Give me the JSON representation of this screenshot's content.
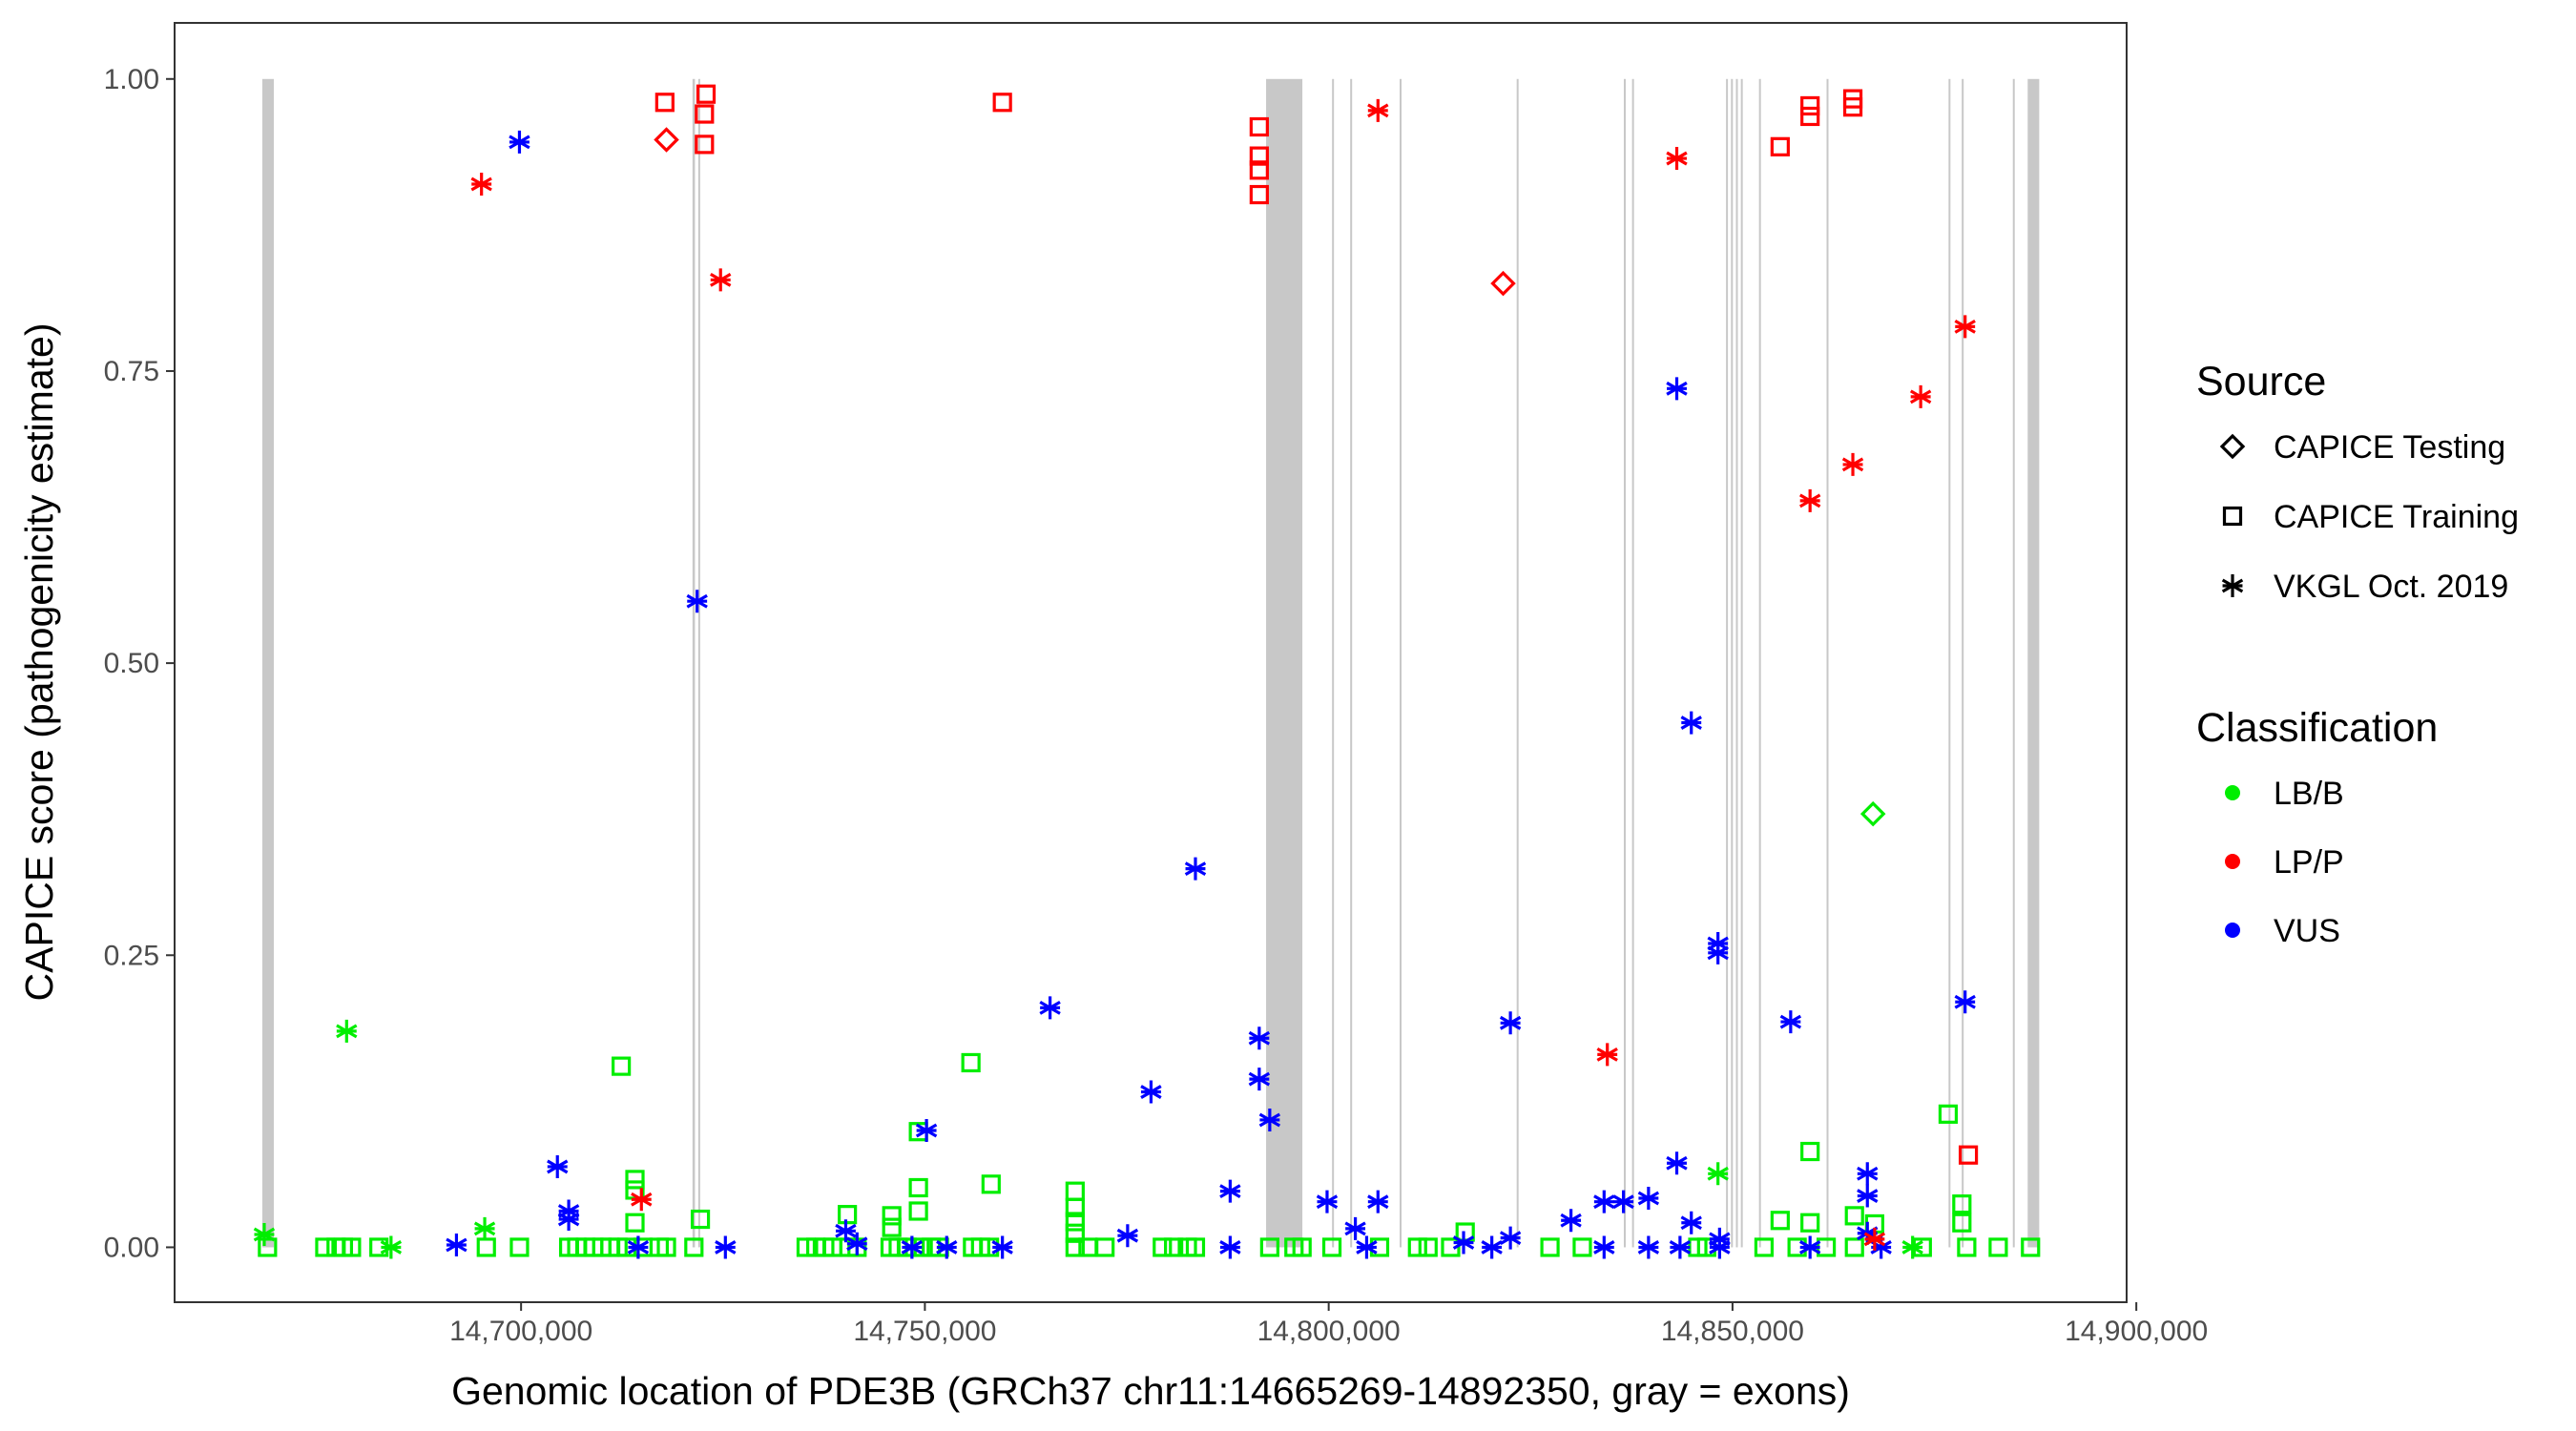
{
  "chart_data": {
    "type": "scatter",
    "xlabel": "Genomic location of PDE3B (GRCh37 chr11:14665269-14892350, gray = exons)",
    "ylabel": "CAPICE score (pathogenicity estimate)",
    "xlim": [
      14657100,
      14898800
    ],
    "ylim": [
      -0.047,
      1.048
    ],
    "x_ticks": [
      14700000,
      14750000,
      14800000,
      14850000,
      14900000
    ],
    "x_tick_labels": [
      "14,700,000",
      "14,750,000",
      "14,800,000",
      "14,850,000",
      "14,900,000"
    ],
    "y_ticks": [
      0,
      0.25,
      0.5,
      0.75,
      1.0
    ],
    "y_tick_labels": [
      "0.00",
      "0.25",
      "0.50",
      "0.75",
      "1.00"
    ],
    "grid": false,
    "legend_placement": "right",
    "legend": {
      "source_title": "Source",
      "sources": [
        {
          "key": "test",
          "label": "CAPICE Testing",
          "shape": "diamond"
        },
        {
          "key": "train",
          "label": "CAPICE Training",
          "shape": "square"
        },
        {
          "key": "vkgl",
          "label": "VKGL Oct. 2019",
          "shape": "asterisk"
        }
      ],
      "class_title": "Classification",
      "classes": [
        {
          "key": "LB/B",
          "label": "LB/B",
          "color": "#00ee00"
        },
        {
          "key": "LP/P",
          "label": "LP/P",
          "color": "#ff0000"
        },
        {
          "key": "VUS",
          "label": "VUS",
          "color": "#0000ff"
        }
      ]
    },
    "exon_color": "#c8c8c8",
    "exons": [
      [
        14667956,
        14669385
      ],
      [
        14721226,
        14721533
      ],
      [
        14721941,
        14722145
      ],
      [
        14792250,
        14796740
      ],
      [
        14800417,
        14800500
      ],
      [
        14802662,
        14802745
      ],
      [
        14808785,
        14808868
      ],
      [
        14823276,
        14823359
      ],
      [
        14836543,
        14836626
      ],
      [
        14837563,
        14837646
      ],
      [
        14849197,
        14849280
      ],
      [
        14849810,
        14849893
      ],
      [
        14850422,
        14850505
      ],
      [
        14851034,
        14851117
      ],
      [
        14853279,
        14853362
      ],
      [
        14861647,
        14861730
      ],
      [
        14876751,
        14876834
      ],
      [
        14878384,
        14878467
      ],
      [
        14884711,
        14884794
      ],
      [
        14886548,
        14887977
      ]
    ],
    "point_fields": [
      "position",
      "score",
      "source",
      "classification"
    ],
    "points": [
      [
        14668600,
        0,
        "train",
        "LB/B"
      ],
      [
        14675700,
        0,
        "train",
        "LB/B"
      ],
      [
        14677100,
        0,
        "train",
        "LB/B"
      ],
      [
        14678000,
        0,
        "train",
        "LB/B"
      ],
      [
        14679000,
        0,
        "train",
        "LB/B"
      ],
      [
        14682400,
        0,
        "train",
        "LB/B"
      ],
      [
        14683900,
        0,
        "vkgl",
        "LB/B"
      ],
      [
        14695700,
        0,
        "train",
        "LB/B"
      ],
      [
        14699800,
        0,
        "train",
        "LB/B"
      ],
      [
        14705900,
        0,
        "train",
        "LB/B"
      ],
      [
        14706900,
        0,
        "train",
        "LB/B"
      ],
      [
        14708000,
        0,
        "train",
        "LB/B"
      ],
      [
        14709000,
        0,
        "train",
        "LB/B"
      ],
      [
        14710000,
        0,
        "train",
        "LB/B"
      ],
      [
        14711000,
        0,
        "train",
        "LB/B"
      ],
      [
        14712000,
        0,
        "train",
        "LB/B"
      ],
      [
        14713100,
        0,
        "train",
        "LB/B"
      ],
      [
        14715100,
        0,
        "train",
        "LB/B"
      ],
      [
        14717100,
        0,
        "train",
        "LB/B"
      ],
      [
        14718000,
        0,
        "train",
        "LB/B"
      ],
      [
        14721400,
        0,
        "train",
        "LB/B"
      ],
      [
        14735300,
        0,
        "train",
        "LB/B"
      ],
      [
        14736500,
        0,
        "train",
        "LB/B"
      ],
      [
        14737600,
        0,
        "train",
        "LB/B"
      ],
      [
        14738600,
        0,
        "train",
        "LB/B"
      ],
      [
        14740600,
        0,
        "train",
        "LB/B"
      ],
      [
        14741600,
        0,
        "train",
        "LB/B"
      ],
      [
        14745700,
        0,
        "train",
        "LB/B"
      ],
      [
        14746700,
        0,
        "train",
        "LB/B"
      ],
      [
        14747800,
        0,
        "train",
        "LB/B"
      ],
      [
        14749400,
        0,
        "train",
        "LB/B"
      ],
      [
        14750800,
        0,
        "train",
        "LB/B"
      ],
      [
        14751800,
        0,
        "train",
        "LB/B"
      ],
      [
        14755900,
        0,
        "train",
        "LB/B"
      ],
      [
        14756900,
        0,
        "train",
        "LB/B"
      ],
      [
        14758000,
        0,
        "train",
        "LB/B"
      ],
      [
        14768600,
        0,
        "train",
        "LB/B"
      ],
      [
        14770200,
        0,
        "train",
        "LB/B"
      ],
      [
        14772300,
        0,
        "train",
        "LB/B"
      ],
      [
        14779400,
        0,
        "train",
        "LB/B"
      ],
      [
        14780800,
        0,
        "train",
        "LB/B"
      ],
      [
        14782500,
        0,
        "train",
        "LB/B"
      ],
      [
        14783500,
        0,
        "train",
        "LB/B"
      ],
      [
        14792700,
        0,
        "train",
        "LB/B"
      ],
      [
        14795700,
        0,
        "train",
        "LB/B"
      ],
      [
        14796700,
        0,
        "train",
        "LB/B"
      ],
      [
        14800400,
        0,
        "train",
        "LB/B"
      ],
      [
        14806300,
        0,
        "train",
        "LB/B"
      ],
      [
        14811000,
        0,
        "train",
        "LB/B"
      ],
      [
        14812300,
        0,
        "train",
        "LB/B"
      ],
      [
        14815100,
        0,
        "train",
        "LB/B"
      ],
      [
        14827400,
        0,
        "train",
        "LB/B"
      ],
      [
        14831400,
        0,
        "train",
        "LB/B"
      ],
      [
        14845700,
        0,
        "train",
        "LB/B"
      ],
      [
        14846800,
        0,
        "train",
        "LB/B"
      ],
      [
        14853900,
        0,
        "train",
        "LB/B"
      ],
      [
        14858000,
        0,
        "train",
        "LB/B"
      ],
      [
        14861600,
        0,
        "train",
        "LB/B"
      ],
      [
        14865100,
        0,
        "train",
        "LB/B"
      ],
      [
        14872300,
        0,
        "vkgl",
        "LB/B"
      ],
      [
        14873500,
        0,
        "train",
        "LB/B"
      ],
      [
        14879000,
        0,
        "train",
        "LB/B"
      ],
      [
        14882900,
        0,
        "train",
        "LB/B"
      ],
      [
        14886900,
        0,
        "train",
        "LB/B"
      ],
      [
        14678400,
        0.185,
        "vkgl",
        "LB/B"
      ],
      [
        14867400,
        0.371,
        "test",
        "LB/B"
      ],
      [
        14848200,
        0.063,
        "vkgl",
        "LB/B"
      ],
      [
        14712400,
        0.155,
        "train",
        "LB/B"
      ],
      [
        14755700,
        0.158,
        "train",
        "LB/B"
      ],
      [
        14758200,
        0.054,
        "train",
        "LB/B"
      ],
      [
        14749200,
        0.051,
        "train",
        "LB/B"
      ],
      [
        14749200,
        0.031,
        "train",
        "LB/B"
      ],
      [
        14749200,
        0.099,
        "train",
        "LB/B"
      ],
      [
        14714100,
        0.058,
        "train",
        "LB/B"
      ],
      [
        14714100,
        0.049,
        "train",
        "LB/B"
      ],
      [
        14714100,
        0.021,
        "train",
        "LB/B"
      ],
      [
        14876700,
        0.114,
        "train",
        "LB/B"
      ],
      [
        14859600,
        0.082,
        "train",
        "LB/B"
      ],
      [
        14859600,
        0.021,
        "train",
        "LB/B"
      ],
      [
        14878400,
        0.037,
        "train",
        "LB/B"
      ],
      [
        14878400,
        0.021,
        "train",
        "LB/B"
      ],
      [
        14865100,
        0.027,
        "train",
        "LB/B"
      ],
      [
        14855900,
        0.023,
        "train",
        "LB/B"
      ],
      [
        14768600,
        0.048,
        "train",
        "LB/B"
      ],
      [
        14768600,
        0.034,
        "train",
        "LB/B"
      ],
      [
        14768600,
        0.022,
        "train",
        "LB/B"
      ],
      [
        14768600,
        0.012,
        "train",
        "LB/B"
      ],
      [
        14745900,
        0.027,
        "train",
        "LB/B"
      ],
      [
        14745900,
        0.017,
        "train",
        "LB/B"
      ],
      [
        14722200,
        0.024,
        "train",
        "LB/B"
      ],
      [
        14740400,
        0.028,
        "train",
        "LB/B"
      ],
      [
        14668200,
        0.011,
        "vkgl",
        "LB/B"
      ],
      [
        14695500,
        0.016,
        "vkgl",
        "LB/B"
      ],
      [
        14816900,
        0.013,
        "train",
        "LB/B"
      ],
      [
        14867600,
        0.02,
        "train",
        "LB/B"
      ],
      [
        14699800,
        0.946,
        "vkgl",
        "VUS"
      ],
      [
        14721800,
        0.553,
        "vkgl",
        "VUS"
      ],
      [
        14704500,
        0.069,
        "vkgl",
        "VUS"
      ],
      [
        14705900,
        0.031,
        "vkgl",
        "VUS"
      ],
      [
        14705900,
        0.024,
        "vkgl",
        "VUS"
      ],
      [
        14692000,
        0.002,
        "vkgl",
        "VUS"
      ],
      [
        14714500,
        0,
        "vkgl",
        "VUS"
      ],
      [
        14725300,
        0,
        "vkgl",
        "VUS"
      ],
      [
        14740200,
        0.014,
        "vkgl",
        "VUS"
      ],
      [
        14741600,
        0.003,
        "vkgl",
        "VUS"
      ],
      [
        14748400,
        0,
        "vkgl",
        "VUS"
      ],
      [
        14750200,
        0.1,
        "vkgl",
        "VUS"
      ],
      [
        14752700,
        0,
        "vkgl",
        "VUS"
      ],
      [
        14759600,
        0,
        "vkgl",
        "VUS"
      ],
      [
        14765500,
        0.205,
        "vkgl",
        "VUS"
      ],
      [
        14775100,
        0.01,
        "vkgl",
        "VUS"
      ],
      [
        14778000,
        0.133,
        "vkgl",
        "VUS"
      ],
      [
        14783500,
        0.324,
        "vkgl",
        "VUS"
      ],
      [
        14787800,
        0,
        "vkgl",
        "VUS"
      ],
      [
        14787800,
        0.048,
        "vkgl",
        "VUS"
      ],
      [
        14791400,
        0.179,
        "vkgl",
        "VUS"
      ],
      [
        14791400,
        0.144,
        "vkgl",
        "VUS"
      ],
      [
        14792700,
        0.109,
        "vkgl",
        "VUS"
      ],
      [
        14799800,
        0.039,
        "vkgl",
        "VUS"
      ],
      [
        14803300,
        0.016,
        "vkgl",
        "VUS"
      ],
      [
        14806100,
        0.039,
        "vkgl",
        "VUS"
      ],
      [
        14804700,
        0,
        "vkgl",
        "VUS"
      ],
      [
        14816700,
        0.004,
        "vkgl",
        "VUS"
      ],
      [
        14820200,
        0,
        "vkgl",
        "VUS"
      ],
      [
        14822500,
        0.192,
        "vkgl",
        "VUS"
      ],
      [
        14822500,
        0.008,
        "vkgl",
        "VUS"
      ],
      [
        14830000,
        0.023,
        "vkgl",
        "VUS"
      ],
      [
        14834100,
        0.039,
        "vkgl",
        "VUS"
      ],
      [
        14834100,
        0,
        "vkgl",
        "VUS"
      ],
      [
        14836500,
        0.039,
        "vkgl",
        "VUS"
      ],
      [
        14839600,
        0.042,
        "vkgl",
        "VUS"
      ],
      [
        14839600,
        0,
        "vkgl",
        "VUS"
      ],
      [
        14843100,
        0.735,
        "vkgl",
        "VUS"
      ],
      [
        14843100,
        0.072,
        "vkgl",
        "VUS"
      ],
      [
        14843500,
        0,
        "vkgl",
        "VUS"
      ],
      [
        14844900,
        0.449,
        "vkgl",
        "VUS"
      ],
      [
        14844900,
        0.021,
        "vkgl",
        "VUS"
      ],
      [
        14848200,
        0.26,
        "vkgl",
        "VUS"
      ],
      [
        14848200,
        0.252,
        "vkgl",
        "VUS"
      ],
      [
        14848400,
        0.007,
        "vkgl",
        "VUS"
      ],
      [
        14848400,
        0,
        "vkgl",
        "VUS"
      ],
      [
        14857200,
        0.193,
        "vkgl",
        "VUS"
      ],
      [
        14859600,
        0,
        "vkgl",
        "VUS"
      ],
      [
        14866700,
        0.063,
        "vkgl",
        "VUS"
      ],
      [
        14866700,
        0.044,
        "vkgl",
        "VUS"
      ],
      [
        14866700,
        0.012,
        "vkgl",
        "VUS"
      ],
      [
        14868400,
        0,
        "vkgl",
        "VUS"
      ],
      [
        14878800,
        0.21,
        "vkgl",
        "VUS"
      ],
      [
        14695100,
        0.91,
        "vkgl",
        "LP/P"
      ],
      [
        14718000,
        0.948,
        "test",
        "LP/P"
      ],
      [
        14717800,
        0.98,
        "train",
        "LP/P"
      ],
      [
        14722900,
        0.987,
        "train",
        "LP/P"
      ],
      [
        14722700,
        0.97,
        "train",
        "LP/P"
      ],
      [
        14722700,
        0.944,
        "train",
        "LP/P"
      ],
      [
        14724700,
        0.828,
        "vkgl",
        "LP/P"
      ],
      [
        14714900,
        0.041,
        "vkgl",
        "LP/P"
      ],
      [
        14759600,
        0.98,
        "train",
        "LP/P"
      ],
      [
        14791400,
        0.959,
        "train",
        "LP/P"
      ],
      [
        14791400,
        0.934,
        "train",
        "LP/P"
      ],
      [
        14791400,
        0.922,
        "train",
        "LP/P"
      ],
      [
        14791400,
        0.901,
        "train",
        "LP/P"
      ],
      [
        14806100,
        0.973,
        "vkgl",
        "LP/P"
      ],
      [
        14821600,
        0.825,
        "test",
        "LP/P"
      ],
      [
        14843100,
        0.932,
        "vkgl",
        "LP/P"
      ],
      [
        14834500,
        0.165,
        "vkgl",
        "LP/P"
      ],
      [
        14855900,
        0.942,
        "train",
        "LP/P"
      ],
      [
        14859600,
        0.977,
        "train",
        "LP/P"
      ],
      [
        14859600,
        0.968,
        "train",
        "LP/P"
      ],
      [
        14859600,
        0.639,
        "vkgl",
        "LP/P"
      ],
      [
        14864900,
        0.983,
        "train",
        "LP/P"
      ],
      [
        14864900,
        0.976,
        "train",
        "LP/P"
      ],
      [
        14864900,
        0.67,
        "vkgl",
        "LP/P"
      ],
      [
        14873300,
        0.728,
        "vkgl",
        "LP/P"
      ],
      [
        14878800,
        0.788,
        "vkgl",
        "LP/P"
      ],
      [
        14879200,
        0.079,
        "train",
        "LP/P"
      ],
      [
        14867600,
        0.007,
        "vkgl",
        "LP/P"
      ]
    ]
  }
}
